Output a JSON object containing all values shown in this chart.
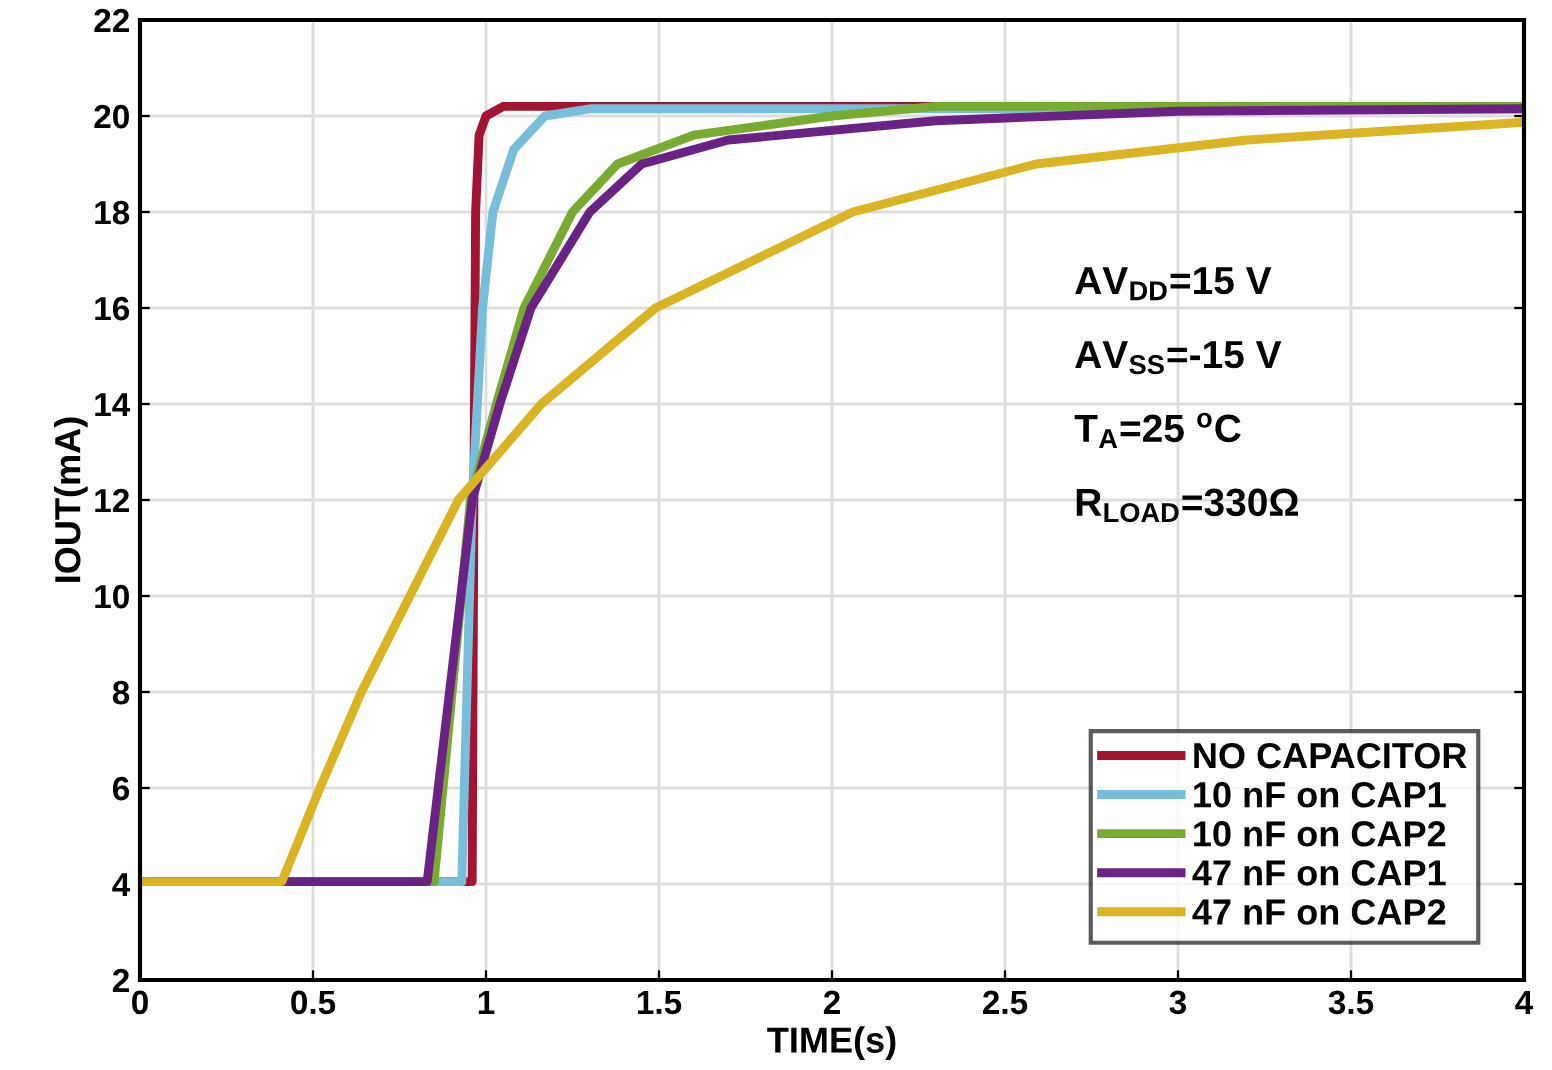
{
  "chart_data": {
    "type": "line",
    "xlabel": "TIME(s)",
    "ylabel": "IOUT(mA)",
    "xlim": [
      0,
      4
    ],
    "ylim": [
      2,
      22
    ],
    "xticks": [
      0,
      0.5,
      1,
      1.5,
      2,
      2.5,
      3,
      3.5,
      4
    ],
    "yticks": [
      2,
      4,
      6,
      8,
      10,
      12,
      14,
      16,
      18,
      20,
      22
    ],
    "grid": true,
    "legend": "bottom right",
    "marker": "none",
    "line_style": "solid",
    "annotations": [
      "AV$_{DD}$=15 V",
      "AV$_{SS}$=-15 V",
      "T$_{A}$=25 $^{o}$C",
      "R$_{LOAD}$=330Ω"
    ],
    "series": [
      {
        "name": "NO CAPACITOR",
        "color": "#a2142f",
        "x": [
          0,
          0.96,
          0.965,
          0.97,
          0.98,
          1.0,
          1.05,
          1.2,
          4
        ],
        "values": [
          4.05,
          4.05,
          12,
          18,
          19.6,
          20.0,
          20.2,
          20.2,
          20.2
        ]
      },
      {
        "name": "10 nF on CAP1",
        "color": "#77bedb",
        "x": [
          0,
          0.93,
          0.96,
          0.99,
          1.02,
          1.08,
          1.17,
          1.3,
          4
        ],
        "values": [
          4.05,
          4.05,
          12,
          16,
          18,
          19.3,
          20,
          20.15,
          20.15
        ]
      },
      {
        "name": "10 nF on CAP2",
        "color": "#77ac30",
        "x": [
          0,
          0.85,
          0.955,
          1.03,
          1.11,
          1.25,
          1.38,
          1.6,
          2.0,
          2.3,
          4
        ],
        "values": [
          4.05,
          4.05,
          12,
          14,
          16,
          18,
          19,
          19.6,
          20,
          20.2,
          20.2
        ]
      },
      {
        "name": "47 nF on CAP1",
        "color": "#6b2285",
        "x": [
          0,
          0.83,
          0.96,
          1.04,
          1.13,
          1.3,
          1.45,
          1.7,
          2.3,
          3.0,
          4
        ],
        "values": [
          4.05,
          4.05,
          12,
          14,
          16,
          18,
          19,
          19.5,
          19.9,
          20.1,
          20.15
        ]
      },
      {
        "name": "47 nF on CAP2",
        "color": "#dbb424",
        "x": [
          0,
          0.41,
          0.52,
          0.64,
          0.78,
          0.92,
          1.16,
          1.49,
          2.06,
          2.59,
          3.2,
          4
        ],
        "values": [
          4.05,
          4.05,
          6,
          8,
          10,
          12,
          14,
          16,
          18,
          19,
          19.5,
          19.87
        ]
      }
    ]
  }
}
